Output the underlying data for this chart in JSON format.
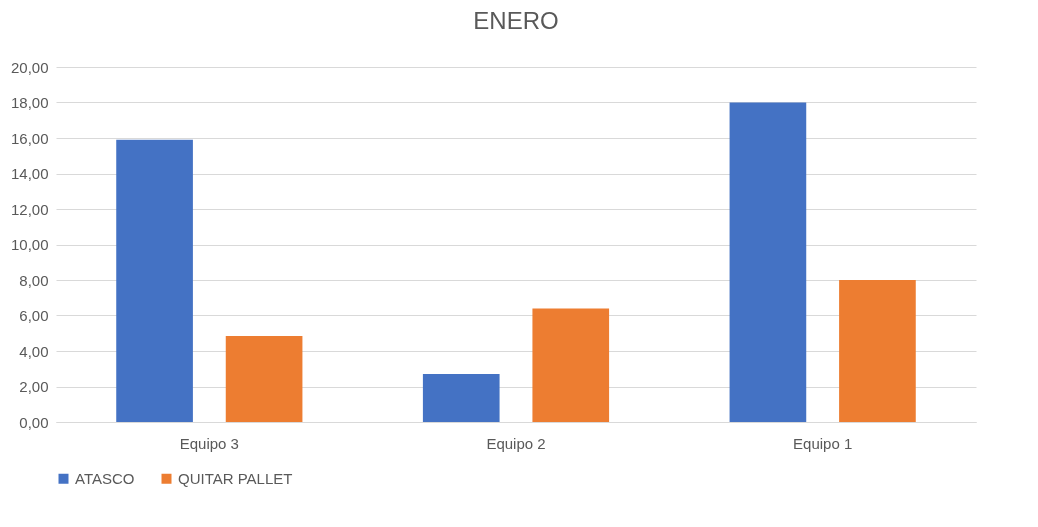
{
  "chart_data": {
    "type": "bar",
    "title": "ENERO",
    "categories": [
      "Equipo 3",
      "Equipo 2",
      "Equipo 1"
    ],
    "series": [
      {
        "name": "ATASCO",
        "color": "#4472c4",
        "values": [
          15.9,
          2.7,
          18.0
        ]
      },
      {
        "name": "QUITAR PALLET",
        "color": "#ed7d31",
        "values": [
          4.85,
          6.4,
          8.0
        ]
      }
    ],
    "ylim": [
      0,
      20
    ],
    "yticks": [
      {
        "value": 0,
        "label": "0,00"
      },
      {
        "value": 2,
        "label": "2,00"
      },
      {
        "value": 4,
        "label": "4,00"
      },
      {
        "value": 6,
        "label": "6,00"
      },
      {
        "value": 8,
        "label": "8,00"
      },
      {
        "value": 10,
        "label": "10,00"
      },
      {
        "value": 12,
        "label": "12,00"
      },
      {
        "value": 14,
        "label": "14,00"
      },
      {
        "value": 16,
        "label": "16,00"
      },
      {
        "value": 18,
        "label": "18,00"
      },
      {
        "value": 20,
        "label": "20,00"
      }
    ],
    "grid": "y",
    "legend": "bottom"
  }
}
